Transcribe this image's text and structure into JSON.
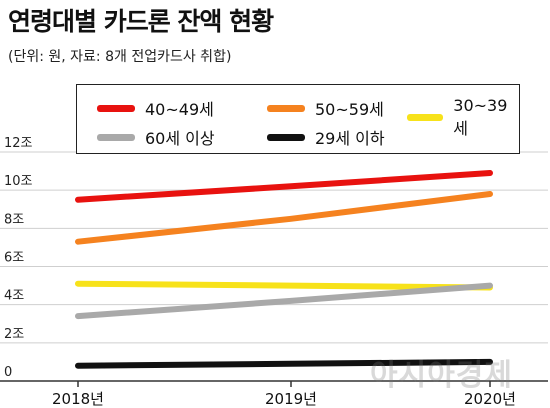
{
  "header": {
    "title": "연령대별 카드론 잔액 현황",
    "subtitle": "(단위: 원, 자료: 8개 전업카드사 취합)"
  },
  "watermark": "아시아경제",
  "chart_data": {
    "type": "line",
    "x": [
      "2018년",
      "2019년",
      "2020년"
    ],
    "ylim": [
      0,
      12
    ],
    "y_ticks": [
      {
        "value": 0,
        "label": "0"
      },
      {
        "value": 2,
        "label": "2조"
      },
      {
        "value": 4,
        "label": "4조"
      },
      {
        "value": 6,
        "label": "6조"
      },
      {
        "value": 8,
        "label": "8조"
      },
      {
        "value": 10,
        "label": "10조"
      },
      {
        "value": 12,
        "label": "12조"
      }
    ],
    "grid": true,
    "legend_position": "top",
    "series": [
      {
        "name": "40~49세",
        "color": "#e8120f",
        "values": [
          9.5,
          10.2,
          10.9
        ]
      },
      {
        "name": "50~59세",
        "color": "#f5821f",
        "values": [
          7.3,
          8.5,
          9.8
        ]
      },
      {
        "name": "30~39세",
        "color": "#f7e21a",
        "values": [
          5.1,
          5.0,
          4.9
        ]
      },
      {
        "name": "60세 이상",
        "color": "#a9a9a9",
        "values": [
          3.4,
          4.2,
          5.0
        ]
      },
      {
        "name": "29세 이하",
        "color": "#111111",
        "values": [
          0.8,
          0.9,
          1.0
        ]
      }
    ]
  }
}
